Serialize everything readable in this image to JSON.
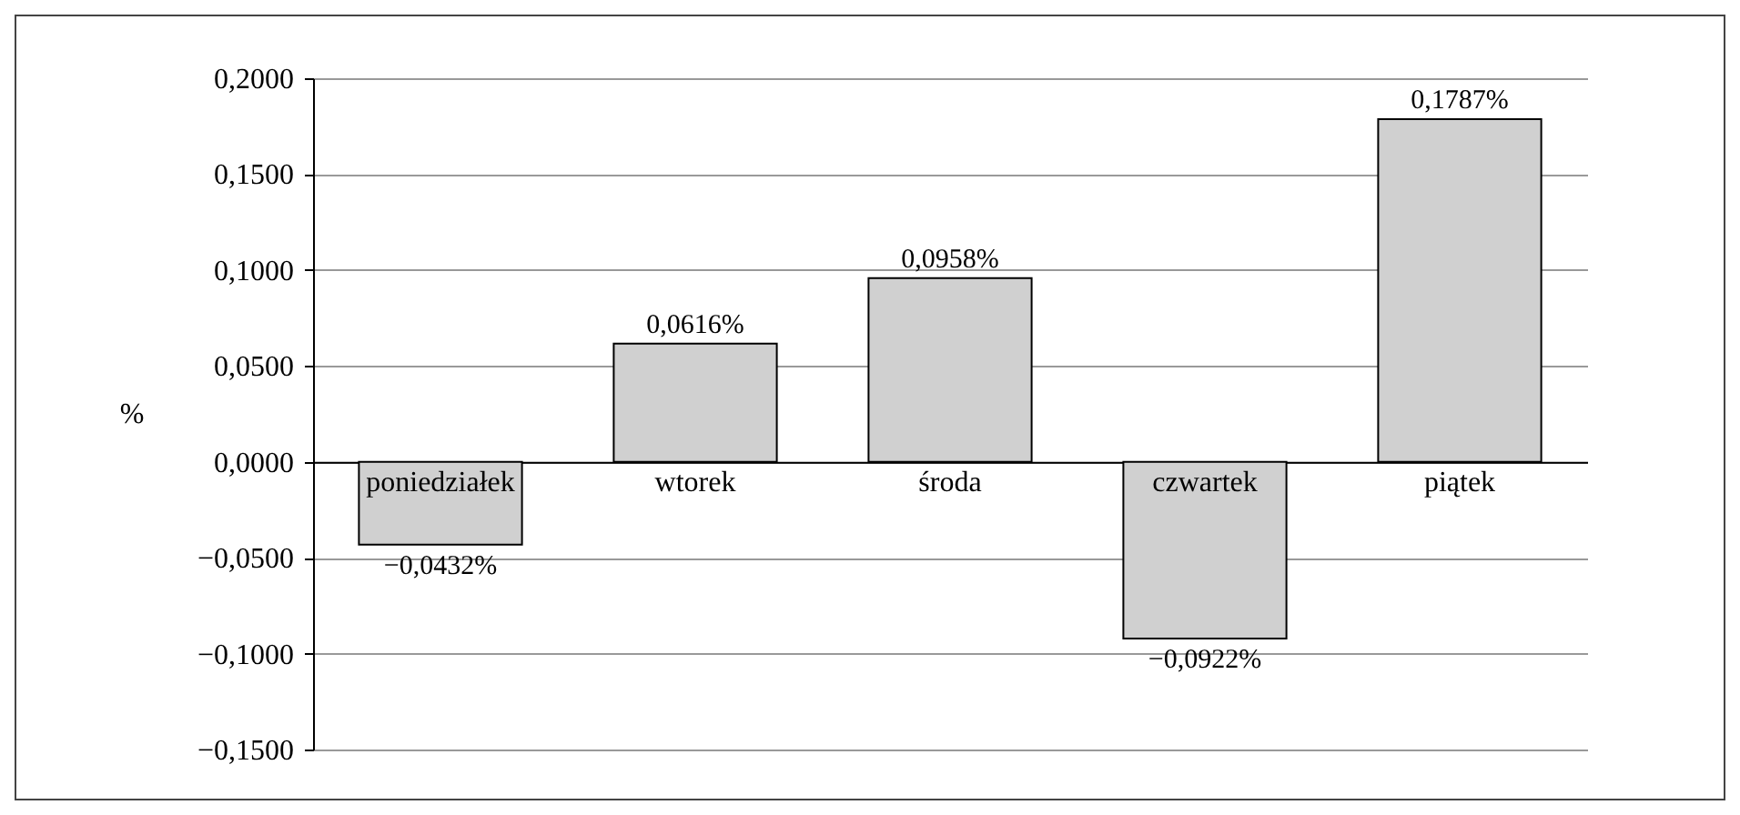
{
  "chart_data": {
    "type": "bar",
    "ylabel": "%",
    "categories": [
      "poniedziałek",
      "wtorek",
      "środa",
      "czwartek",
      "piątek"
    ],
    "series": [
      {
        "color": "#d0d0d0",
        "values": [
          -0.0432,
          0.0616,
          0.0958,
          -0.0922,
          0.1787
        ],
        "value_labels": [
          "−0,0432%",
          "0,0616%",
          "0,0958%",
          "−0,0922%",
          "0,1787%"
        ]
      }
    ],
    "ylim": [
      -0.15,
      0.2
    ],
    "yticks": [
      {
        "value": -0.15,
        "label": "−0,1500"
      },
      {
        "value": -0.1,
        "label": "−0,1000"
      },
      {
        "value": -0.05,
        "label": "−0,0500"
      },
      {
        "value": 0,
        "label": "0,0000"
      },
      {
        "value": 0.05,
        "label": "0,0500"
      },
      {
        "value": 0.1,
        "label": "0,1000"
      },
      {
        "value": 0.15,
        "label": "0,1500"
      },
      {
        "value": 0.2,
        "label": "0,2000"
      }
    ],
    "grid": "y"
  }
}
